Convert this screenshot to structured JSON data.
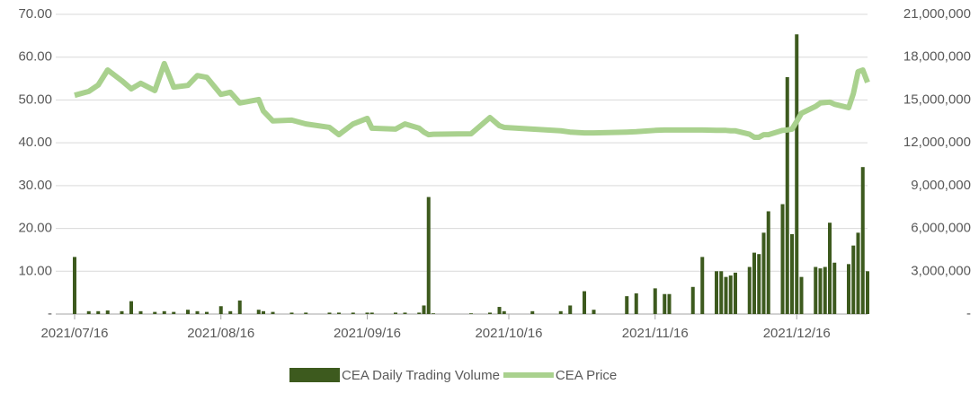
{
  "chart_data": {
    "type": "combo",
    "x": [
      "2021/07/16",
      "2021/07/19",
      "2021/07/21",
      "2021/07/23",
      "2021/07/26",
      "2021/07/28",
      "2021/07/30",
      "2021/08/02",
      "2021/08/04",
      "2021/08/06",
      "2021/08/09",
      "2021/08/11",
      "2021/08/13",
      "2021/08/16",
      "2021/08/18",
      "2021/08/20",
      "2021/08/24",
      "2021/08/25",
      "2021/08/27",
      "2021/08/31",
      "2021/09/03",
      "2021/09/08",
      "2021/09/10",
      "2021/09/13",
      "2021/09/16",
      "2021/09/17",
      "2021/09/22",
      "2021/09/24",
      "2021/09/27",
      "2021/09/28",
      "2021/09/29",
      "2021/09/30",
      "2021/10/08",
      "2021/10/12",
      "2021/10/14",
      "2021/10/15",
      "2021/10/21",
      "2021/10/27",
      "2021/10/29",
      "2021/11/01",
      "2021/11/03",
      "2021/11/10",
      "2021/11/12",
      "2021/11/16",
      "2021/11/18",
      "2021/11/19",
      "2021/11/24",
      "2021/11/26",
      "2021/11/29",
      "2021/11/30",
      "2021/12/01",
      "2021/12/02",
      "2021/12/03",
      "2021/12/06",
      "2021/12/07",
      "2021/12/08",
      "2021/12/09",
      "2021/12/10",
      "2021/12/13",
      "2021/12/14",
      "2021/12/15",
      "2021/12/16",
      "2021/12/17",
      "2021/12/20",
      "2021/12/21",
      "2021/12/22",
      "2021/12/23",
      "2021/12/24",
      "2021/12/27",
      "2021/12/28",
      "2021/12/29",
      "2021/12/30",
      "2021/12/31"
    ],
    "series": [
      {
        "name": "CEA Daily Trading Volume",
        "type": "bar",
        "axis": "y2",
        "color": "#3d5a1e",
        "values": [
          4000000,
          200000,
          200000,
          250000,
          200000,
          900000,
          200000,
          150000,
          200000,
          150000,
          300000,
          200000,
          150000,
          550000,
          200000,
          950000,
          300000,
          200000,
          150000,
          100000,
          100000,
          100000,
          100000,
          100000,
          100000,
          100000,
          100000,
          100000,
          100000,
          600000,
          8200000,
          50000,
          50000,
          100000,
          500000,
          200000,
          200000,
          200000,
          600000,
          1600000,
          300000,
          1250000,
          1450000,
          1800000,
          1400000,
          1400000,
          1900000,
          4000000,
          3000000,
          3000000,
          2600000,
          2700000,
          2900000,
          3300000,
          4300000,
          4200000,
          5700000,
          7200000,
          7700000,
          16600000,
          5600000,
          19600000,
          2600000,
          3300000,
          3200000,
          3300000,
          6400000,
          3600000,
          3500000,
          4800000,
          5700000,
          10300000,
          3000000
        ]
      },
      {
        "name": "CEA Price",
        "type": "line",
        "color": "#a9d18e",
        "values": [
          51.1,
          52.0,
          53.5,
          57.0,
          54.5,
          52.6,
          53.9,
          52.2,
          58.5,
          53.0,
          53.4,
          55.7,
          55.3,
          51.3,
          51.8,
          49.3,
          50.1,
          47.4,
          45.1,
          45.3,
          44.4,
          43.6,
          41.9,
          44.4,
          45.7,
          43.4,
          43.2,
          44.4,
          43.4,
          42.5,
          41.9,
          42.0,
          42.1,
          45.9,
          44.0,
          43.6,
          43.2,
          42.8,
          42.5,
          42.3,
          42.3,
          42.5,
          42.6,
          42.9,
          43.0,
          43.0,
          43.0,
          43.0,
          42.9,
          42.9,
          42.9,
          42.8,
          42.8,
          42.0,
          41.3,
          41.3,
          41.9,
          41.9,
          42.9,
          43.0,
          43.2,
          45.0,
          46.9,
          48.5,
          49.3,
          49.4,
          49.5,
          49.0,
          48.2,
          51.5,
          56.6,
          57.0,
          54.1
        ]
      }
    ],
    "xlim": [
      "2021/07/16",
      "2021/12/31"
    ],
    "xticks": [
      "2021/07/16",
      "2021/08/16",
      "2021/09/16",
      "2021/10/16",
      "2021/11/16",
      "2021/12/16"
    ],
    "ylim": [
      0,
      70
    ],
    "yticks": [
      {
        "value": 0,
        "label": "-"
      },
      {
        "value": 10,
        "label": "10.00"
      },
      {
        "value": 20,
        "label": "20.00"
      },
      {
        "value": 30,
        "label": "30.00"
      },
      {
        "value": 40,
        "label": "40.00"
      },
      {
        "value": 50,
        "label": "50.00"
      },
      {
        "value": 60,
        "label": "60.00"
      },
      {
        "value": 70,
        "label": "70.00"
      }
    ],
    "y2lim": [
      0,
      21000000
    ],
    "y2ticks": [
      {
        "value": 0,
        "label": "-"
      },
      {
        "value": 3000000,
        "label": "3,000,000"
      },
      {
        "value": 6000000,
        "label": "6,000,000"
      },
      {
        "value": 9000000,
        "label": "9,000,000"
      },
      {
        "value": 12000000,
        "label": "12,000,000"
      },
      {
        "value": 15000000,
        "label": "15,000,000"
      },
      {
        "value": 18000000,
        "label": "18,000,000"
      },
      {
        "value": 21000000,
        "label": "21,000,000"
      }
    ],
    "grid": true,
    "legend": "bottom"
  }
}
